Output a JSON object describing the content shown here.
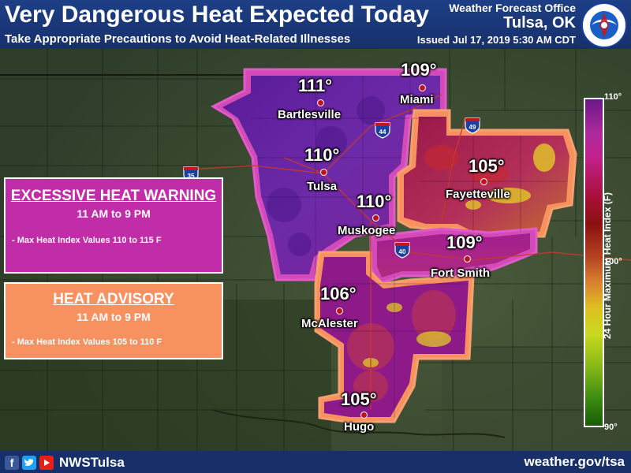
{
  "header": {
    "title": "Very Dangerous Heat Expected Today",
    "subtitle": "Take Appropriate Precautions to Avoid Heat-Related Illnesses",
    "office_label": "Weather Forecast Office",
    "office_city": "Tulsa, OK",
    "issued": "Issued Jul 17, 2019 5:30 AM CDT",
    "logo_text": "NATIONAL WEATHER SERVICE"
  },
  "legend": {
    "warning": {
      "title": "EXCESSIVE HEAT WARNING",
      "time": "11 AM to 9 PM",
      "note": "- Max Heat Index Values 110 to 115 F",
      "color": "#c12ca8"
    },
    "advisory": {
      "title": "HEAT ADVISORY",
      "time": "11 AM to 9 PM",
      "note": "- Max Heat Index Values 105 to 110 F",
      "color": "#f7915f"
    }
  },
  "colorbar": {
    "title": "24 Hour Maximum Heat Index (F)",
    "ticks": [
      "110°",
      "100°",
      "90°"
    ]
  },
  "cities": [
    {
      "name": "Bartlesville",
      "value": "111°"
    },
    {
      "name": "Miami",
      "value": "109°"
    },
    {
      "name": "Tulsa",
      "value": "110°"
    },
    {
      "name": "Muskogee",
      "value": "110°"
    },
    {
      "name": "Fayetteville",
      "value": "105°"
    },
    {
      "name": "Fort Smith",
      "value": "109°"
    },
    {
      "name": "McAlester",
      "value": "106°"
    },
    {
      "name": "Hugo",
      "value": "105°"
    }
  ],
  "interstates": [
    "44",
    "49",
    "40",
    "35"
  ],
  "footer": {
    "handle": "NWSTulsa",
    "website": "weather.gov/tsa",
    "social_icons": [
      "facebook-icon",
      "twitter-icon",
      "youtube-icon"
    ]
  }
}
